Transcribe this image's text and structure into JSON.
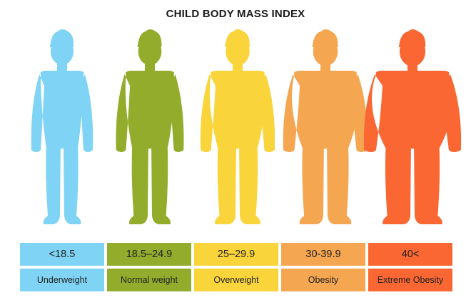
{
  "title": "CHILD BODY MASS INDEX",
  "categories": [
    {
      "range": "<18.5",
      "label": "Underweight",
      "color": "#7fd3f4",
      "figure_icon": "child-silhouette-thin-icon"
    },
    {
      "range": "18.5–24.9",
      "label": "Normal weight",
      "color": "#94ac2c",
      "figure_icon": "child-silhouette-normal-icon"
    },
    {
      "range": "25–29.9",
      "label": "Overweight",
      "color": "#f9d43a",
      "figure_icon": "child-silhouette-overweight-icon"
    },
    {
      "range": "30-39.9",
      "label": "Obesity",
      "color": "#f4a650",
      "figure_icon": "child-silhouette-obese-icon"
    },
    {
      "range": "40<",
      "label": "Extreme Obesity",
      "color": "#fa6733",
      "figure_icon": "child-silhouette-extreme-obese-icon"
    }
  ]
}
